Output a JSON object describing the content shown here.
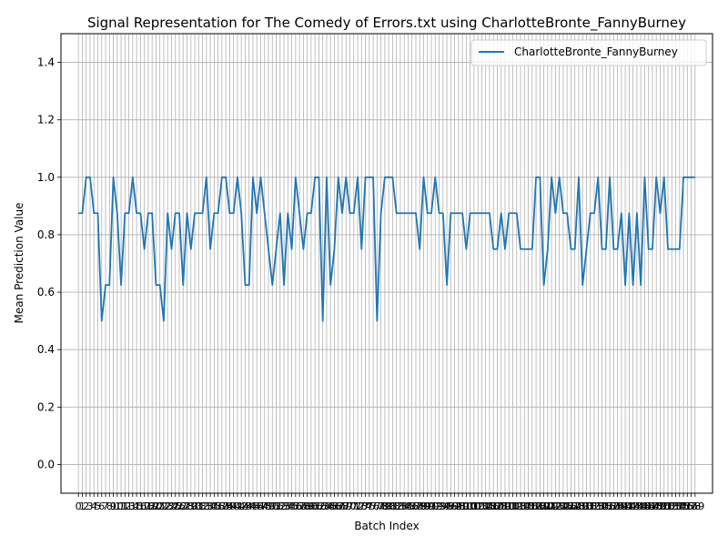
{
  "chart_data": {
    "type": "line",
    "title": "Signal Representation for The Comedy of Errors.txt using CharlotteBronte_FannyBurney",
    "xlabel": "Batch Index",
    "ylabel": "Mean Prediction Value",
    "ylim": [
      -0.1,
      1.5
    ],
    "yticks": [
      "0.0",
      "0.2",
      "0.4",
      "0.6",
      "0.8",
      "1.0",
      "1.2",
      "1.4"
    ],
    "xlim": [
      -4.5,
      163.5
    ],
    "grid": true,
    "legend_position": "top-right",
    "series": [
      {
        "name": "CharlotteBronte_FannyBurney",
        "color": "#1f77b4",
        "x": [
          0,
          1,
          2,
          3,
          4,
          5,
          6,
          7,
          8,
          9,
          10,
          11,
          12,
          13,
          14,
          15,
          16,
          17,
          18,
          19,
          20,
          21,
          22,
          23,
          24,
          25,
          26,
          27,
          28,
          29,
          30,
          31,
          32,
          33,
          34,
          35,
          36,
          37,
          38,
          39,
          40,
          41,
          42,
          43,
          44,
          45,
          46,
          47,
          48,
          49,
          50,
          51,
          52,
          53,
          54,
          55,
          56,
          57,
          58,
          59,
          60,
          61,
          62,
          63,
          64,
          65,
          66,
          67,
          68,
          69,
          70,
          71,
          72,
          73,
          74,
          75,
          76,
          77,
          78,
          79,
          80,
          81,
          82,
          83,
          84,
          85,
          86,
          87,
          88,
          89,
          90,
          91,
          92,
          93,
          94,
          95,
          96,
          97,
          98,
          99,
          100,
          101,
          102,
          103,
          104,
          105,
          106,
          107,
          108,
          109,
          110,
          111,
          112,
          113,
          114,
          115,
          116,
          117,
          118,
          119,
          120,
          121,
          122,
          123,
          124,
          125,
          126,
          127,
          128,
          129,
          130,
          131,
          132,
          133,
          134,
          135,
          136,
          137,
          138,
          139,
          140,
          141,
          142,
          143,
          144,
          145,
          146,
          147,
          148,
          149,
          150,
          151,
          152,
          153,
          154,
          155,
          156,
          157,
          158,
          159
        ],
        "values": [
          0.875,
          0.875,
          1.0,
          1.0,
          0.875,
          0.875,
          0.5,
          0.625,
          0.625,
          1.0,
          0.875,
          0.625,
          0.875,
          0.875,
          1.0,
          0.875,
          0.875,
          0.75,
          0.875,
          0.875,
          0.625,
          0.625,
          0.5,
          0.875,
          0.75,
          0.875,
          0.875,
          0.625,
          0.875,
          0.75,
          0.875,
          0.875,
          0.875,
          1.0,
          0.75,
          0.875,
          0.875,
          1.0,
          1.0,
          0.875,
          0.875,
          1.0,
          0.875,
          0.625,
          0.625,
          1.0,
          0.875,
          1.0,
          0.875,
          0.75,
          0.625,
          0.75,
          0.875,
          0.625,
          0.875,
          0.75,
          1.0,
          0.875,
          0.75,
          0.875,
          0.875,
          1.0,
          1.0,
          0.5,
          1.0,
          0.625,
          0.75,
          1.0,
          0.875,
          1.0,
          0.875,
          0.875,
          1.0,
          0.75,
          1.0,
          1.0,
          1.0,
          0.5,
          0.875,
          1.0,
          1.0,
          1.0,
          0.875,
          0.875,
          0.875,
          0.875,
          0.875,
          0.875,
          0.75,
          1.0,
          0.875,
          0.875,
          1.0,
          0.875,
          0.875,
          0.625,
          0.875,
          0.875,
          0.875,
          0.875,
          0.75,
          0.875,
          0.875,
          0.875,
          0.875,
          0.875,
          0.875,
          0.75,
          0.75,
          0.875,
          0.75,
          0.875,
          0.875,
          0.875,
          0.75,
          0.75,
          0.75,
          0.75,
          1.0,
          1.0,
          0.625,
          0.75,
          1.0,
          0.875,
          1.0,
          0.875,
          0.875,
          0.75,
          0.75,
          1.0,
          0.625,
          0.75,
          0.875,
          0.875,
          1.0,
          0.75,
          0.75,
          1.0,
          0.75,
          0.75,
          0.875,
          0.625,
          0.875,
          0.625,
          0.875,
          0.625,
          1.0,
          0.75,
          0.75,
          1.0,
          0.875,
          1.0,
          0.75,
          0.75,
          0.75,
          0.75,
          1.0,
          1.0,
          1.0,
          1.0
        ]
      }
    ],
    "xtick_labels": [
      "0",
      "1",
      "2",
      "3",
      "4",
      "5",
      "6",
      "7",
      "8",
      "9",
      "10",
      "11",
      "12",
      "13",
      "14",
      "15",
      "16",
      "17",
      "18",
      "19",
      "20",
      "21",
      "22",
      "23",
      "24",
      "25",
      "26",
      "27",
      "28",
      "29",
      "30",
      "31",
      "32",
      "33",
      "34",
      "35",
      "36",
      "37",
      "38",
      "39",
      "40",
      "41",
      "42",
      "43",
      "44",
      "45",
      "46",
      "47",
      "48",
      "49",
      "50",
      "51",
      "52",
      "53",
      "54",
      "55",
      "56",
      "57",
      "58",
      "59",
      "60",
      "61",
      "62",
      "63",
      "64",
      "65",
      "66",
      "67",
      "68",
      "69",
      "70",
      "71",
      "72",
      "73",
      "74",
      "75",
      "76",
      "77",
      "78",
      "79",
      "80",
      "81",
      "82",
      "83",
      "84",
      "85",
      "86",
      "87",
      "88",
      "89",
      "90",
      "91",
      "92",
      "93",
      "94",
      "95",
      "96",
      "97",
      "98",
      "99",
      "100",
      "101",
      "102",
      "103",
      "104",
      "105",
      "106",
      "107",
      "108",
      "109",
      "110",
      "111",
      "112",
      "113",
      "114",
      "115",
      "116",
      "117",
      "118",
      "119",
      "120",
      "121",
      "122",
      "123",
      "124",
      "125",
      "126",
      "127",
      "128",
      "129",
      "130",
      "131",
      "132",
      "133",
      "134",
      "135",
      "136",
      "137",
      "138",
      "139",
      "140",
      "141",
      "142",
      "143",
      "144",
      "145",
      "146",
      "147",
      "148",
      "149",
      "150",
      "151",
      "152",
      "153",
      "154",
      "155",
      "156",
      "157",
      "158",
      "159"
    ]
  }
}
